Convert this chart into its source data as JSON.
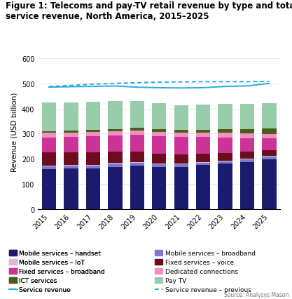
{
  "years": [
    2015,
    2016,
    2017,
    2018,
    2019,
    2020,
    2021,
    2022,
    2023,
    2024,
    2025
  ],
  "title_line1": "Figure 1: Telecoms and pay-TV retail revenue by type and total",
  "title_line2": "service revenue, North America, 2015–2025",
  "ylabel": "Revenue (USD billion)",
  "ylim": [
    0,
    620
  ],
  "yticks": [
    0,
    100,
    200,
    300,
    400,
    500,
    600
  ],
  "segments": [
    {
      "label": "Mobile services – handset",
      "color": "#1a1a6e",
      "values": [
        160,
        163,
        163,
        168,
        172,
        168,
        168,
        175,
        180,
        188,
        198
      ]
    },
    {
      "label": "Mobile services – broadband",
      "color": "#7b7bcd",
      "values": [
        10,
        10,
        11,
        12,
        12,
        10,
        10,
        10,
        10,
        10,
        10
      ]
    },
    {
      "label": "Mobile services – IoT",
      "color": "#d9b8d9",
      "values": [
        2,
        2,
        3,
        3,
        3,
        3,
        3,
        3,
        3,
        3,
        3
      ]
    },
    {
      "label": "Fixed services – voice",
      "color": "#6b0d1e",
      "values": [
        55,
        52,
        50,
        47,
        43,
        40,
        37,
        33,
        30,
        27,
        22
      ]
    },
    {
      "label": "Fixed services – broadband",
      "color": "#cc3399",
      "values": [
        58,
        60,
        62,
        63,
        65,
        68,
        68,
        66,
        62,
        55,
        48
      ]
    },
    {
      "label": "Dedicated connections",
      "color": "#f090c0",
      "values": [
        18,
        18,
        18,
        18,
        18,
        18,
        18,
        18,
        18,
        18,
        18
      ]
    },
    {
      "label": "ICT services",
      "color": "#4a5e1a",
      "values": [
        8,
        8,
        8,
        8,
        10,
        10,
        10,
        10,
        15,
        18,
        22
      ]
    },
    {
      "label": "Pay TV",
      "color": "#99ccaa",
      "values": [
        112,
        112,
        112,
        110,
        108,
        105,
        100,
        100,
        100,
        100,
        100
      ]
    }
  ],
  "service_revenue": [
    485,
    487,
    488,
    490,
    485,
    483,
    482,
    483,
    488,
    490,
    500
  ],
  "service_revenue_previous": [
    488,
    492,
    497,
    500,
    503,
    505,
    506,
    507,
    507,
    507,
    508
  ],
  "service_revenue_color": "#29abe2",
  "source_text": "Source: Analysys Mason",
  "title_fontsize": 8.5,
  "axis_fontsize": 7.5,
  "tick_fontsize": 7,
  "legend_fontsize": 6.5
}
